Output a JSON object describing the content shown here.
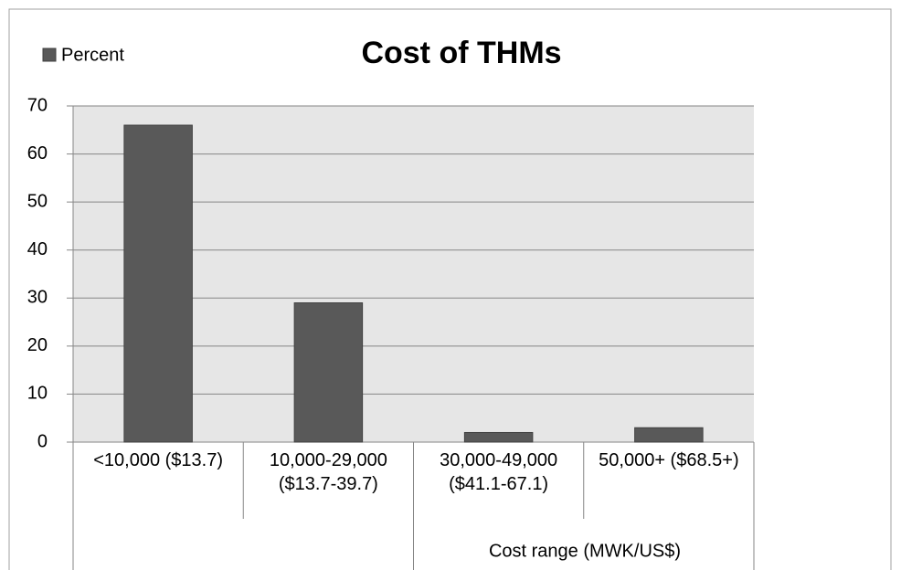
{
  "chart_data": {
    "type": "bar",
    "title": "Cost of THMs",
    "categories": [
      "<10,000 ($13.7)",
      "10,000-29,000 ($13.7-39.7)",
      "30,000-49,000 ($41.1-67.1)",
      "50,000+ ($68.5+)"
    ],
    "series": [
      {
        "name": "Percent",
        "color": "#595959",
        "values": [
          66,
          29,
          2,
          3
        ]
      }
    ],
    "x_label": "Cost range (MWK/US$)",
    "ylim": [
      0,
      70
    ],
    "yticks": [
      0,
      10,
      20,
      30,
      40,
      50,
      60,
      70
    ],
    "grid": true,
    "legend": "top-left"
  }
}
